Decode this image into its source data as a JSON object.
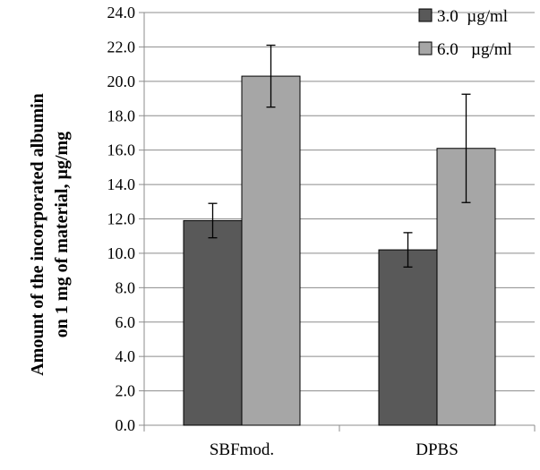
{
  "chart_data": {
    "type": "bar",
    "title": "",
    "xlabel": "",
    "ylabel_lines": [
      "Amount of the incorporated albumin",
      "on 1 mg of material, µg/mg"
    ],
    "categories": [
      "SBFmod.",
      "DPBS"
    ],
    "ylim": [
      0,
      24
    ],
    "y_ticks": [
      "0.0",
      "2.0",
      "4.0",
      "6.0",
      "8.0",
      "10.0",
      "12.0",
      "14.0",
      "16.0",
      "18.0",
      "20.0",
      "22.0",
      "24.0"
    ],
    "grid": true,
    "legend_position": "top-right",
    "series": [
      {
        "name": "3.0  µg/ml",
        "color": "#595959",
        "values": [
          11.9,
          10.2
        ],
        "error": [
          1.0,
          1.0
        ]
      },
      {
        "name": "6.0   µg/ml",
        "color": "#a6a6a6",
        "values": [
          20.3,
          16.1
        ],
        "error": [
          1.8,
          3.15
        ]
      }
    ]
  }
}
